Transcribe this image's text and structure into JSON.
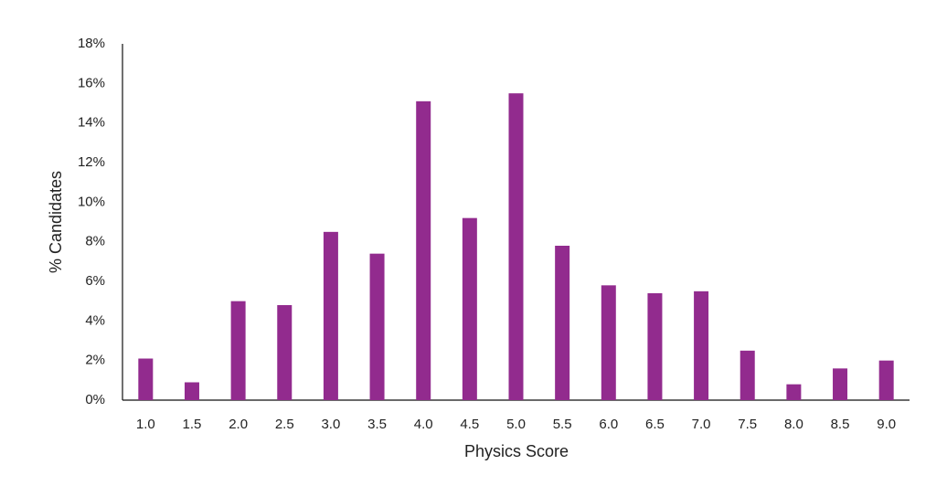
{
  "chart_data": {
    "type": "bar",
    "x_label": "Physics Score",
    "y_label": "% Candidates",
    "categories": [
      "1.0",
      "1.5",
      "2.0",
      "2.5",
      "3.0",
      "3.5",
      "4.0",
      "4.5",
      "5.0",
      "5.5",
      "6.0",
      "6.5",
      "7.0",
      "7.5",
      "8.0",
      "8.5",
      "9.0"
    ],
    "values": [
      2.1,
      0.9,
      5.0,
      4.8,
      8.5,
      7.4,
      15.1,
      9.2,
      15.5,
      7.8,
      5.8,
      5.4,
      5.5,
      2.5,
      0.8,
      1.6,
      2.0
    ],
    "color": "#922b8e",
    "ylim": [
      0,
      18
    ],
    "yticks": [
      {
        "value": 0,
        "label": "0%"
      },
      {
        "value": 2,
        "label": "2%"
      },
      {
        "value": 4,
        "label": "4%"
      },
      {
        "value": 6,
        "label": "6%"
      },
      {
        "value": 8,
        "label": "8%"
      },
      {
        "value": 10,
        "label": "10%"
      },
      {
        "value": 12,
        "label": "12%"
      },
      {
        "value": 14,
        "label": "14%"
      },
      {
        "value": 16,
        "label": "16%"
      },
      {
        "value": 18,
        "label": "18%"
      }
    ],
    "grid": false
  }
}
